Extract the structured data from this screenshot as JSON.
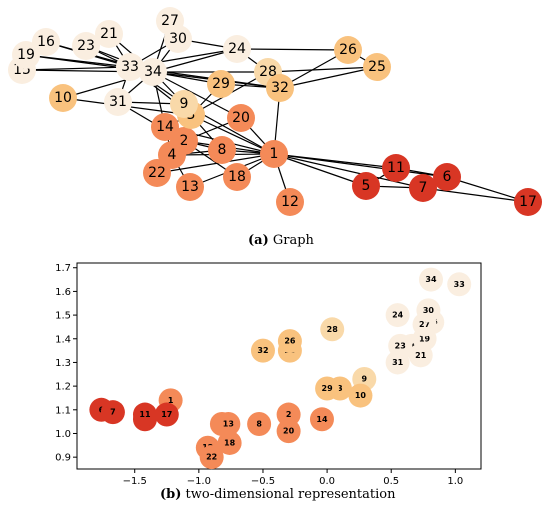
{
  "figure": {
    "caption_a_tag": "(a)",
    "caption_a_text": " Graph",
    "caption_b_tag": "(b)",
    "caption_b_text": " two-dimensional representation"
  },
  "colors": {
    "c1": "#faeee0",
    "c2": "#f9d9a9",
    "c3": "#f9c27e",
    "c4": "#f48a58",
    "c5": "#d83624"
  },
  "chart_data": [
    {
      "type": "network",
      "node_group": {
        "1": "c4",
        "2": "c4",
        "3": "c3",
        "4": "c4",
        "5": "c5",
        "6": "c5",
        "7": "c5",
        "8": "c4",
        "9": "c2",
        "10": "c3",
        "11": "c5",
        "12": "c4",
        "13": "c4",
        "14": "c4",
        "15": "c1",
        "16": "c1",
        "17": "c5",
        "18": "c4",
        "19": "c1",
        "20": "c4",
        "21": "c1",
        "22": "c4",
        "23": "c1",
        "24": "c1",
        "25": "c3",
        "26": "c3",
        "27": "c1",
        "28": "c2",
        "29": "c3",
        "30": "c1",
        "31": "c1",
        "32": "c3",
        "33": "c1",
        "34": "c1"
      },
      "edges": [
        [
          1,
          2
        ],
        [
          1,
          3
        ],
        [
          1,
          4
        ],
        [
          1,
          5
        ],
        [
          1,
          6
        ],
        [
          1,
          7
        ],
        [
          1,
          8
        ],
        [
          1,
          9
        ],
        [
          1,
          11
        ],
        [
          1,
          12
        ],
        [
          1,
          13
        ],
        [
          1,
          14
        ],
        [
          1,
          18
        ],
        [
          1,
          20
        ],
        [
          1,
          22
        ],
        [
          1,
          32
        ],
        [
          2,
          3
        ],
        [
          2,
          4
        ],
        [
          2,
          8
        ],
        [
          2,
          14
        ],
        [
          2,
          18
        ],
        [
          2,
          20
        ],
        [
          2,
          22
        ],
        [
          2,
          31
        ],
        [
          3,
          4
        ],
        [
          3,
          8
        ],
        [
          3,
          9
        ],
        [
          3,
          10
        ],
        [
          3,
          14
        ],
        [
          3,
          28
        ],
        [
          3,
          29
        ],
        [
          3,
          33
        ],
        [
          4,
          8
        ],
        [
          4,
          13
        ],
        [
          4,
          14
        ],
        [
          5,
          7
        ],
        [
          5,
          11
        ],
        [
          6,
          7
        ],
        [
          6,
          11
        ],
        [
          6,
          17
        ],
        [
          7,
          17
        ],
        [
          9,
          31
        ],
        [
          9,
          33
        ],
        [
          9,
          34
        ],
        [
          10,
          34
        ],
        [
          14,
          34
        ],
        [
          15,
          33
        ],
        [
          15,
          34
        ],
        [
          16,
          33
        ],
        [
          16,
          34
        ],
        [
          19,
          33
        ],
        [
          19,
          34
        ],
        [
          20,
          34
        ],
        [
          21,
          33
        ],
        [
          21,
          34
        ],
        [
          23,
          33
        ],
        [
          23,
          34
        ],
        [
          24,
          26
        ],
        [
          24,
          28
        ],
        [
          24,
          30
        ],
        [
          24,
          33
        ],
        [
          24,
          34
        ],
        [
          25,
          26
        ],
        [
          25,
          28
        ],
        [
          25,
          32
        ],
        [
          26,
          32
        ],
        [
          27,
          30
        ],
        [
          27,
          34
        ],
        [
          28,
          34
        ],
        [
          29,
          32
        ],
        [
          29,
          34
        ],
        [
          30,
          33
        ],
        [
          30,
          34
        ],
        [
          31,
          33
        ],
        [
          31,
          34
        ],
        [
          32,
          33
        ],
        [
          32,
          34
        ],
        [
          33,
          34
        ]
      ]
    },
    {
      "type": "scatter",
      "xlim": [
        -1.95,
        1.2
      ],
      "ylim": [
        0.85,
        1.72
      ],
      "xticks": [
        "-1.5",
        "-1.0",
        "-0.5",
        "0.0",
        "0.5",
        "1.0"
      ],
      "yticks": [
        "0.9",
        "1.0",
        "1.1",
        "1.2",
        "1.3",
        "1.4",
        "1.5",
        "1.6",
        "1.7"
      ],
      "xlabel": "",
      "ylabel": "",
      "points": [
        {
          "label": "1",
          "x": -1.22,
          "y": 1.14
        },
        {
          "label": "2",
          "x": -0.3,
          "y": 1.08
        },
        {
          "label": "3",
          "x": 0.1,
          "y": 1.19
        },
        {
          "label": "4",
          "x": -0.82,
          "y": 1.04
        },
        {
          "label": "5",
          "x": -1.42,
          "y": 1.06
        },
        {
          "label": "6",
          "x": -1.76,
          "y": 1.1
        },
        {
          "label": "7",
          "x": -1.67,
          "y": 1.09
        },
        {
          "label": "8",
          "x": -0.53,
          "y": 1.04
        },
        {
          "label": "9",
          "x": 0.29,
          "y": 1.23
        },
        {
          "label": "10",
          "x": 0.26,
          "y": 1.16
        },
        {
          "label": "11",
          "x": -1.42,
          "y": 1.08
        },
        {
          "label": "12",
          "x": -0.93,
          "y": 0.94
        },
        {
          "label": "13",
          "x": -0.77,
          "y": 1.04
        },
        {
          "label": "14",
          "x": -0.04,
          "y": 1.06
        },
        {
          "label": "15",
          "x": 0.82,
          "y": 1.47
        },
        {
          "label": "16",
          "x": 0.66,
          "y": 1.37
        },
        {
          "label": "17",
          "x": -1.25,
          "y": 1.08
        },
        {
          "label": "18",
          "x": -0.76,
          "y": 0.96
        },
        {
          "label": "19",
          "x": 0.76,
          "y": 1.4
        },
        {
          "label": "20",
          "x": -0.3,
          "y": 1.01
        },
        {
          "label": "21",
          "x": 0.73,
          "y": 1.33
        },
        {
          "label": "22",
          "x": -0.9,
          "y": 0.9
        },
        {
          "label": "23",
          "x": 0.57,
          "y": 1.37
        },
        {
          "label": "24",
          "x": 0.55,
          "y": 1.5
        },
        {
          "label": "25",
          "x": -0.29,
          "y": 1.35
        },
        {
          "label": "26",
          "x": -0.29,
          "y": 1.39
        },
        {
          "label": "27",
          "x": 0.76,
          "y": 1.46
        },
        {
          "label": "28",
          "x": 0.04,
          "y": 1.44
        },
        {
          "label": "29",
          "x": 0.0,
          "y": 1.19
        },
        {
          "label": "30",
          "x": 0.79,
          "y": 1.52
        },
        {
          "label": "31",
          "x": 0.55,
          "y": 1.3
        },
        {
          "label": "32",
          "x": -0.5,
          "y": 1.35
        },
        {
          "label": "33",
          "x": 1.03,
          "y": 1.63
        },
        {
          "label": "34",
          "x": 0.81,
          "y": 1.65
        }
      ]
    }
  ]
}
